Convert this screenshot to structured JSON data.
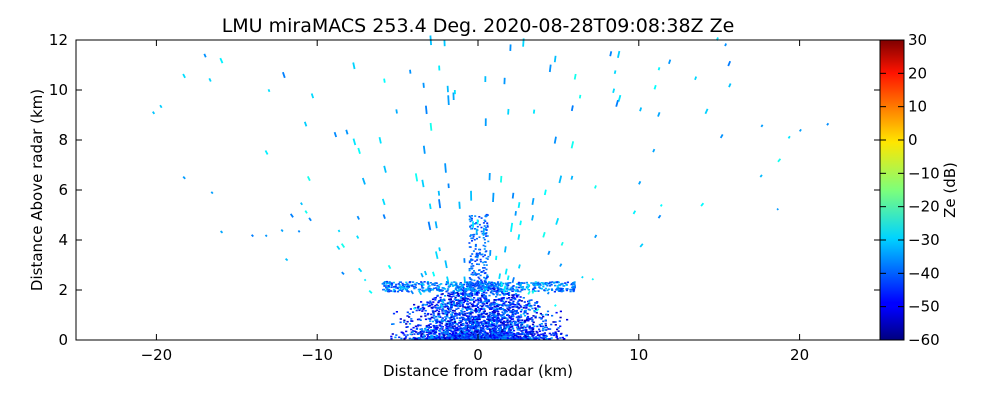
{
  "chart_data": {
    "type": "heatmap",
    "title": "LMU miraMACS 253.4 Deg. 2020-08-28T09:08:38Z  Ze",
    "xlabel": "Distance from radar (km)",
    "ylabel": "Distance Above radar  (km)",
    "xlim": [
      -25,
      25
    ],
    "ylim": [
      0,
      12
    ],
    "xticks": [
      -20,
      -10,
      0,
      10,
      20
    ],
    "yticks": [
      0,
      2,
      4,
      6,
      8,
      10,
      12
    ],
    "grid": false,
    "colorbar": {
      "label": "Ze (dB)",
      "range": [
        -60,
        30
      ],
      "ticks": [
        30,
        20,
        10,
        0,
        -10,
        -20,
        -30,
        -40,
        -50,
        -60
      ],
      "colormap": "jet"
    },
    "features": [
      {
        "desc": "dense low-level echo near radar",
        "x_range": [
          -5,
          5
        ],
        "y_range": [
          0,
          2.4
        ],
        "ze_typical": -45
      },
      {
        "desc": "horizontal layer",
        "x_range": [
          -6,
          6
        ],
        "y_range": [
          1.9,
          2.3
        ],
        "ze_typical": -40
      },
      {
        "desc": "sparse radial speckle",
        "x_range": [
          -23,
          23
        ],
        "y_range": [
          0,
          12
        ],
        "ze_typical": -35
      }
    ]
  }
}
